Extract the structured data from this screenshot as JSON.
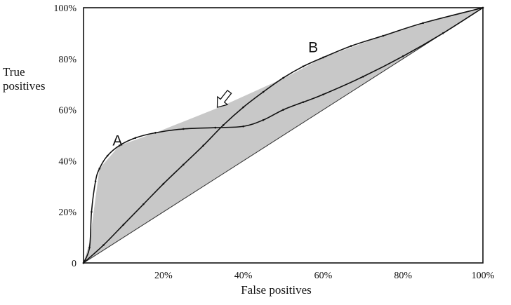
{
  "chart_data": {
    "type": "line",
    "title": "",
    "xlabel": "False positives",
    "ylabel_lines": [
      "True",
      "positives"
    ],
    "xlim": [
      0,
      100
    ],
    "ylim": [
      0,
      100
    ],
    "x_ticks": [
      {
        "value": 0,
        "label": ""
      },
      {
        "value": 20,
        "label": "20%"
      },
      {
        "value": 40,
        "label": "40%"
      },
      {
        "value": 60,
        "label": "60%"
      },
      {
        "value": 80,
        "label": "80%"
      },
      {
        "value": 100,
        "label": "100%"
      }
    ],
    "y_ticks": [
      {
        "value": 0,
        "label": "0"
      },
      {
        "value": 20,
        "label": "20%"
      },
      {
        "value": 40,
        "label": "40%"
      },
      {
        "value": 60,
        "label": "60%"
      },
      {
        "value": 80,
        "label": "80%"
      },
      {
        "value": 100,
        "label": "100%"
      }
    ],
    "grid": false,
    "legend": "none",
    "series": [
      {
        "name": "A",
        "color": "#111111",
        "x": [
          0,
          1.5,
          2,
          3,
          4,
          6,
          9,
          13,
          18,
          25,
          33,
          40,
          45,
          50,
          55,
          60,
          70,
          80,
          90,
          100
        ],
        "y": [
          0,
          6,
          20,
          32,
          37,
          42,
          46,
          49,
          51,
          52.5,
          53,
          53.5,
          56,
          60,
          63,
          66,
          73,
          81,
          90,
          100
        ]
      },
      {
        "name": "B",
        "color": "#111111",
        "x": [
          0,
          5,
          10,
          15,
          20,
          25,
          30,
          35,
          40,
          45,
          50,
          55,
          60,
          67,
          75,
          85,
          100
        ],
        "y": [
          0,
          7,
          15,
          23,
          31,
          38.5,
          46,
          54,
          61,
          67,
          72.5,
          77,
          80.5,
          85,
          89,
          94,
          100
        ]
      }
    ],
    "diagonal": {
      "x": [
        0,
        100
      ],
      "y": [
        0,
        100
      ],
      "color": "#333333"
    },
    "convex_hull": {
      "x": [
        0,
        1.5,
        4,
        9,
        18,
        34,
        51,
        60,
        75,
        90,
        100,
        0
      ],
      "y": [
        0,
        8,
        37,
        46,
        51,
        61,
        73,
        80.5,
        89,
        96,
        100,
        0
      ],
      "fill": "#c8c8c8"
    },
    "annotations": [
      {
        "text": "A",
        "x": 8.5,
        "y": 46
      },
      {
        "text": "B",
        "x": 57.5,
        "y": 82.5
      }
    ],
    "arrow_marker": {
      "x": 35,
      "y": 64,
      "points_at": {
        "x": 33.5,
        "y": 61
      }
    }
  }
}
